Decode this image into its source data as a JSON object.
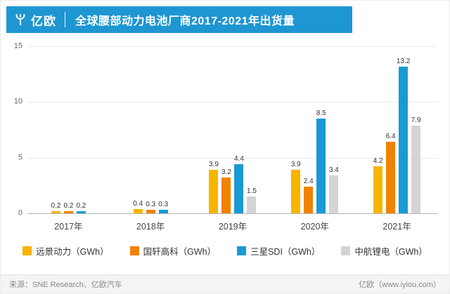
{
  "header": {
    "logo_text": "亿欧",
    "title": "全球腰部动力电池厂商2017-2021年出货量"
  },
  "chart_data": {
    "type": "bar",
    "title": "全球腰部动力电池厂商2017-2021年出货量",
    "categories": [
      "2017年",
      "2018年",
      "2019年",
      "2020年",
      "2021年"
    ],
    "series": [
      {
        "name": "远景动力（GWh）",
        "color": "#F7B500",
        "values": [
          0.2,
          0.4,
          3.9,
          3.9,
          4.2
        ]
      },
      {
        "name": "国轩高科（GWh）",
        "color": "#F08200",
        "values": [
          0.2,
          0.3,
          3.2,
          2.4,
          6.4
        ]
      },
      {
        "name": "三星SDI（GWh）",
        "color": "#189AD5",
        "values": [
          0.2,
          0.3,
          4.4,
          8.5,
          13.2
        ]
      },
      {
        "name": "中航锂电（GWh）",
        "color": "#D4D4D6",
        "values": [
          null,
          null,
          1.5,
          3.4,
          7.9
        ]
      }
    ],
    "ylim": [
      0,
      15
    ],
    "yticks": [
      0,
      5,
      10,
      15
    ],
    "grid": true,
    "legend_position": "bottom"
  },
  "footer": {
    "source": "来源：SNE Research、亿欧汽车",
    "site": "亿欧（www.iyiou.com）"
  }
}
